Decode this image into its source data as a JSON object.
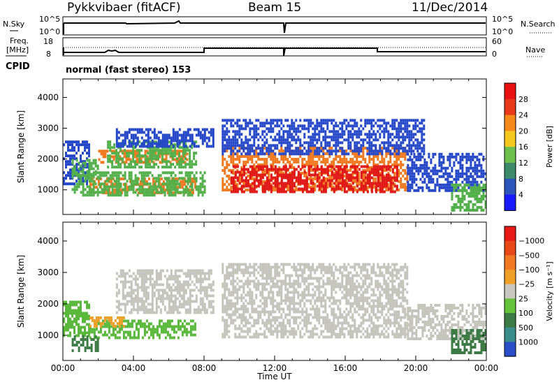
{
  "header": {
    "station": "Pykkvibaer (fitACF)",
    "beam": "Beam 15",
    "date": "11/Dec/2014"
  },
  "panels": {
    "nsky_label": "N.Sky",
    "nsearch_label": "N.Search",
    "nsky_ticks": [
      "10^5",
      "10^0"
    ],
    "nsearch_ticks": [
      "10^5",
      "10^0"
    ],
    "freq_label_line1": "Freq.",
    "freq_label_line2": "[MHz]",
    "freq_ticks": [
      "18",
      "8"
    ],
    "nave_label": "Nave",
    "nave_ticks": [
      "60",
      "0"
    ],
    "cpid_label": "CPID",
    "cpid_text": "normal (fast stereo) 153"
  },
  "chart_data": [
    {
      "type": "heatmap",
      "name": "power",
      "xlabel": "",
      "ylabel": "Slant Range [km]",
      "xlim": [
        0,
        24
      ],
      "ylim": [
        200,
        4600
      ],
      "yticks": [
        "1000",
        "2000",
        "3000",
        "4000"
      ],
      "colorbar_label": "Power [dB]",
      "colorbar_ticks": [
        "4",
        "8",
        "12",
        "16",
        "20",
        "24",
        "28"
      ],
      "colorbar_colors": [
        "#1a1aff",
        "#2b55b8",
        "#3c8a6a",
        "#6fbf4f",
        "#f4c81e",
        "#f58a1a",
        "#e83a1a",
        "#e81010"
      ],
      "colors": {
        "blue": "#2446c8",
        "green": "#52b04a",
        "yellow": "#f0c81e",
        "orange": "#f0781e",
        "red": "#e01818"
      },
      "regions": [
        {
          "t": [
            0.0,
            1.5
          ],
          "range": [
            1200,
            2600
          ],
          "level": "blue"
        },
        {
          "t": [
            0.5,
            2.0
          ],
          "range": [
            1400,
            2000
          ],
          "level": "green"
        },
        {
          "t": [
            2.0,
            7.0
          ],
          "range": [
            1900,
            2300
          ],
          "level": "orange"
        },
        {
          "t": [
            2.5,
            7.5
          ],
          "range": [
            1700,
            2600
          ],
          "level": "green"
        },
        {
          "t": [
            3.0,
            8.5
          ],
          "range": [
            2400,
            3000
          ],
          "level": "blue"
        },
        {
          "t": [
            1.5,
            7.5
          ],
          "range": [
            900,
            1400
          ],
          "level": "orange"
        },
        {
          "t": [
            0.5,
            8.0
          ],
          "range": [
            800,
            1600
          ],
          "level": "green"
        },
        {
          "t": [
            9.0,
            19.5
          ],
          "range": [
            1000,
            2400
          ],
          "level": "orange"
        },
        {
          "t": [
            9.5,
            19.0
          ],
          "range": [
            900,
            1800
          ],
          "level": "red"
        },
        {
          "t": [
            9.0,
            20.5
          ],
          "range": [
            2200,
            3300
          ],
          "level": "blue"
        },
        {
          "t": [
            19.5,
            24.0
          ],
          "range": [
            1000,
            2200
          ],
          "level": "blue"
        },
        {
          "t": [
            22.0,
            24.0
          ],
          "range": [
            300,
            1200
          ],
          "level": "green"
        }
      ]
    },
    {
      "type": "heatmap",
      "name": "velocity",
      "xlabel": "Time UT",
      "ylabel": "Slant Range [km]",
      "xlim": [
        0,
        24
      ],
      "ylim": [
        200,
        4600
      ],
      "xticks": [
        "00:00",
        "04:00",
        "08:00",
        "12:00",
        "16:00",
        "20:00",
        "00:00"
      ],
      "yticks": [
        "1000",
        "2000",
        "3000",
        "4000"
      ],
      "colorbar_label": "Velocity [m s⁻¹]",
      "colorbar_ticks": [
        "1000",
        "500",
        "100",
        "25",
        "−25",
        "−100",
        "−500",
        "−1000"
      ],
      "colorbar_colors": [
        "#2a4ec8",
        "#3a8c8a",
        "#3c7a46",
        "#64c23c",
        "#c8c8c0",
        "#f0a028",
        "#f07820",
        "#e84818",
        "#e81818"
      ],
      "colors": {
        "gray": "#c4c4bc",
        "green": "#5ab83c",
        "darkgreen": "#3c7a46",
        "orange": "#f0a028"
      },
      "regions": [
        {
          "t": [
            3.0,
            8.5
          ],
          "range": [
            1700,
            3100
          ],
          "level": "gray"
        },
        {
          "t": [
            0.0,
            1.5
          ],
          "range": [
            1000,
            2100
          ],
          "level": "green"
        },
        {
          "t": [
            1.5,
            7.5
          ],
          "range": [
            900,
            1500
          ],
          "level": "green"
        },
        {
          "t": [
            1.5,
            3.5
          ],
          "range": [
            1300,
            1600
          ],
          "level": "orange"
        },
        {
          "t": [
            0.5,
            2.0
          ],
          "range": [
            500,
            1000
          ],
          "level": "darkgreen"
        },
        {
          "t": [
            9.0,
            19.5
          ],
          "range": [
            900,
            3300
          ],
          "level": "gray"
        },
        {
          "t": [
            19.5,
            24.0
          ],
          "range": [
            900,
            2000
          ],
          "level": "gray"
        },
        {
          "t": [
            22.0,
            24.0
          ],
          "range": [
            400,
            1200
          ],
          "level": "darkgreen"
        }
      ]
    }
  ]
}
